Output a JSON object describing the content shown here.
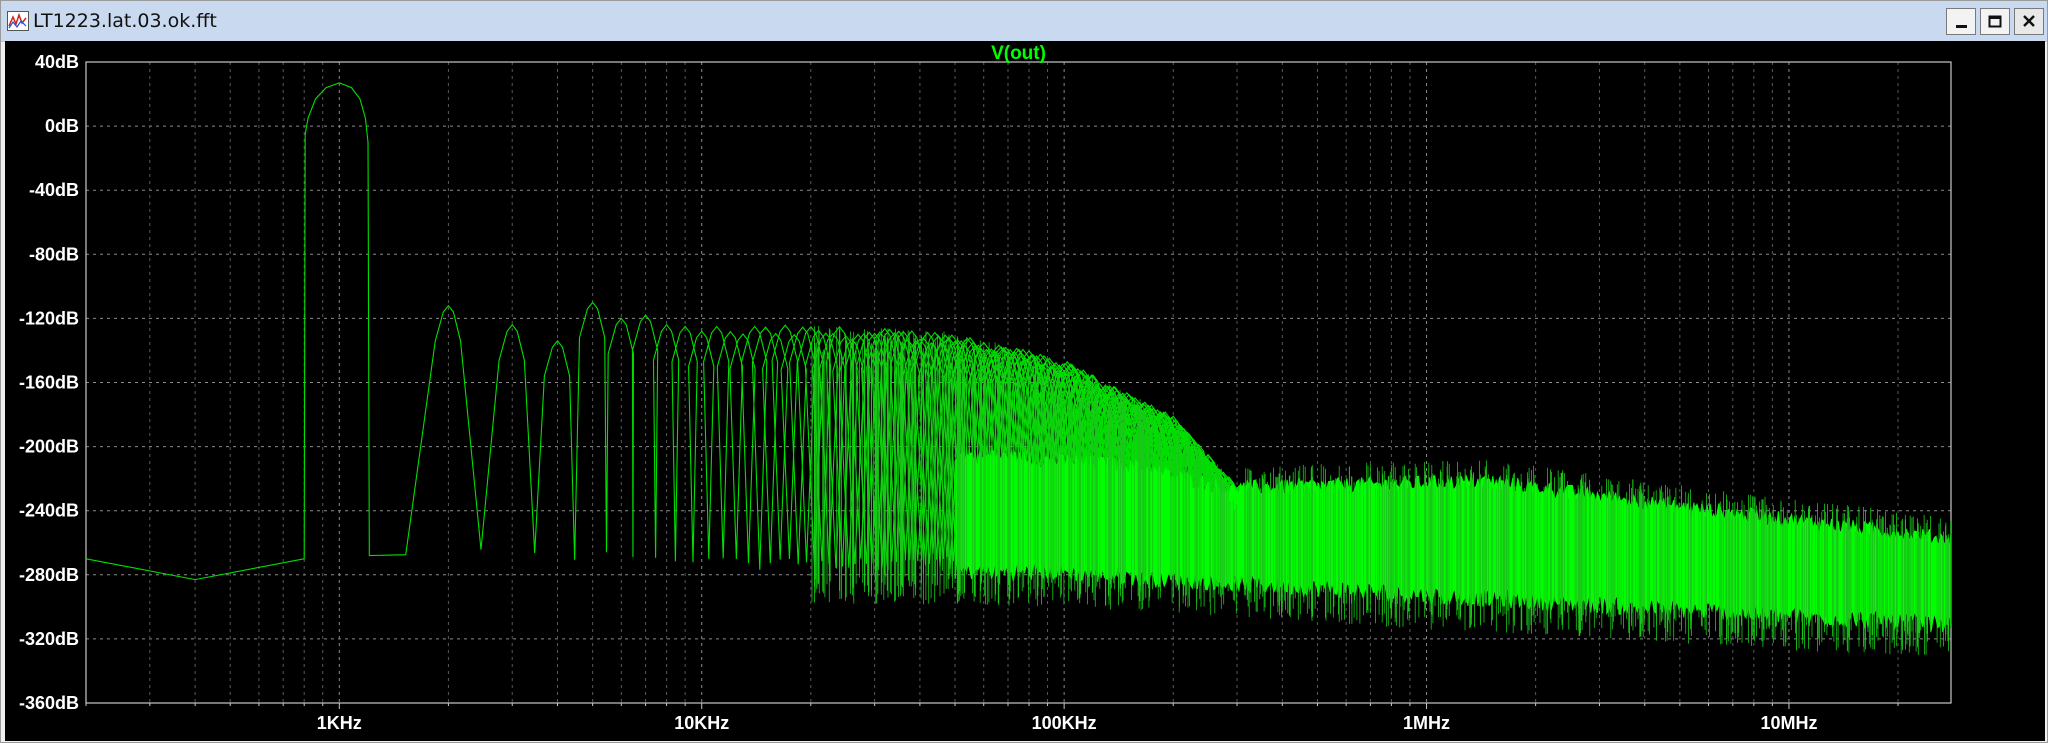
{
  "window": {
    "title": "LT1223.lat.03.ok.fft",
    "icon": "waveform-icon",
    "controls": [
      "minimize-icon",
      "maximize-icon",
      "close-icon"
    ]
  },
  "chart_data": {
    "type": "line",
    "title": "V(out)",
    "xlabel": "",
    "ylabel": "",
    "x_scale": "log",
    "xlim": [
      200,
      28000000
    ],
    "ylim": [
      -360,
      40
    ],
    "grid": true,
    "y_ticks": [
      "40dB",
      "0dB",
      "-40dB",
      "-80dB",
      "-120dB",
      "-160dB",
      "-200dB",
      "-240dB",
      "-280dB",
      "-320dB",
      "-360dB"
    ],
    "y_tick_values": [
      40,
      0,
      -40,
      -80,
      -120,
      -160,
      -200,
      -240,
      -280,
      -320,
      -360
    ],
    "x_ticks": [
      "1KHz",
      "10KHz",
      "100KHz",
      "1MHz",
      "10MHz"
    ],
    "x_tick_values": [
      1000,
      10000,
      100000,
      1000000,
      10000000
    ],
    "series": [
      {
        "color": "#00ff00",
        "fundamental": {
          "x": 1000,
          "y": 27
        },
        "harmonics_peak": [
          {
            "x": 2000,
            "y": -112
          },
          {
            "x": 3000,
            "y": -124
          },
          {
            "x": 4000,
            "y": -134
          },
          {
            "x": 5000,
            "y": -110
          },
          {
            "x": 6000,
            "y": -120
          },
          {
            "x": 7000,
            "y": -118
          },
          {
            "x": 8000,
            "y": -124
          },
          {
            "x": 9000,
            "y": -125
          },
          {
            "x": 10000,
            "y": -128
          },
          {
            "x": 20000,
            "y": -128
          },
          {
            "x": 50000,
            "y": -132
          },
          {
            "x": 100000,
            "y": -150
          },
          {
            "x": 200000,
            "y": -185
          },
          {
            "x": 300000,
            "y": -228
          }
        ],
        "floor": [
          {
            "x": 200,
            "y": -270
          },
          {
            "x": 400,
            "y": -283
          },
          {
            "x": 800,
            "y": -270
          },
          {
            "x": 10000,
            "y": -275
          },
          {
            "x": 100000,
            "y": -278
          },
          {
            "x": 1000000,
            "y": -292
          },
          {
            "x": 10000000,
            "y": -305
          },
          {
            "x": 28000000,
            "y": -310
          }
        ],
        "upper_envelope_hf": [
          {
            "x": 300000,
            "y": -226
          },
          {
            "x": 1500000,
            "y": -222
          },
          {
            "x": 5000000,
            "y": -238
          },
          {
            "x": 28000000,
            "y": -258
          }
        ]
      }
    ]
  }
}
